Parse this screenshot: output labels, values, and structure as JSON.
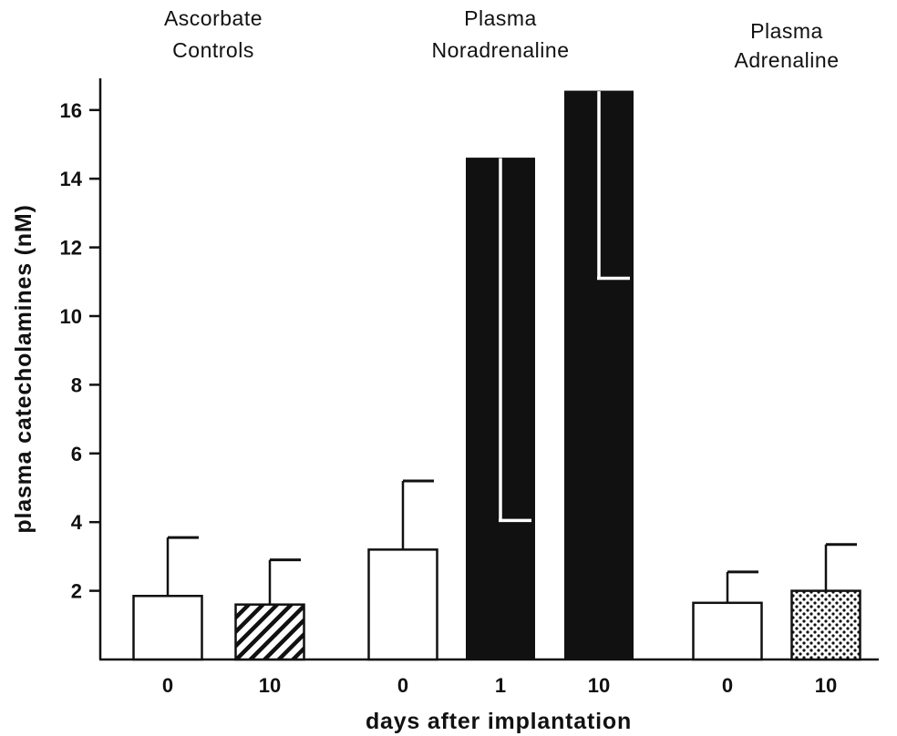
{
  "chart_data": {
    "type": "bar",
    "title": "",
    "xlabel": "days after implantation",
    "ylabel": "plasma catecholamines (nM)",
    "ylim": [
      0,
      17
    ],
    "yticks": [
      2,
      4,
      6,
      8,
      10,
      12,
      14,
      16
    ],
    "grid": false,
    "groups": [
      {
        "title_lines": [
          "Ascorbate",
          "Controls"
        ],
        "bars": [
          {
            "category": "0",
            "value": 1.85,
            "error": 3.55,
            "fill": "white"
          },
          {
            "category": "10",
            "value": 1.6,
            "error": 2.9,
            "fill": "hatched"
          }
        ]
      },
      {
        "title_lines": [
          "Plasma",
          "Noradrenaline"
        ],
        "bars": [
          {
            "category": "0",
            "value": 3.2,
            "error": 5.2,
            "fill": "white"
          },
          {
            "category": "1",
            "value": 14.6,
            "error": 4.05,
            "fill": "black"
          },
          {
            "category": "10",
            "value": 16.55,
            "error": 11.1,
            "fill": "black"
          }
        ]
      },
      {
        "title_lines": [
          "Plasma",
          "Adrenaline"
        ],
        "bars": [
          {
            "category": "0",
            "value": 1.65,
            "error": 2.55,
            "fill": "white"
          },
          {
            "category": "10",
            "value": 2.0,
            "error": 3.35,
            "fill": "dotted"
          }
        ]
      }
    ],
    "colors": {
      "ink": "#111111",
      "paper": "#ffffff"
    }
  }
}
